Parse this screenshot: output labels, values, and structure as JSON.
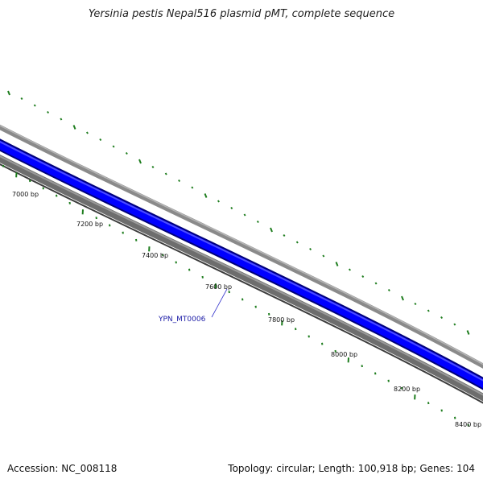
{
  "map": {
    "title": "Yersinia pestis Nepal516 plasmid pMT, complete sequence",
    "footer_accession": "Accession: NC_008118",
    "footer_topology": "Topology: circular; Length: 100,918 bp; Genes: 104"
  },
  "ruler": {
    "tick_labels": [
      "7000 bp",
      "7200 bp",
      "7400 bp",
      "7600 bp",
      "7800 bp",
      "8000 bp",
      "8200 bp",
      "8400 bp"
    ]
  },
  "gene_label": {
    "text": "YPN_MT0006"
  },
  "colors": {
    "forward_feature": "#0000ff",
    "backbone": "#808080",
    "tick_green": "#1e7d1e",
    "gene_label": "#1a1aa6",
    "leader_line": "#3333cc"
  }
}
